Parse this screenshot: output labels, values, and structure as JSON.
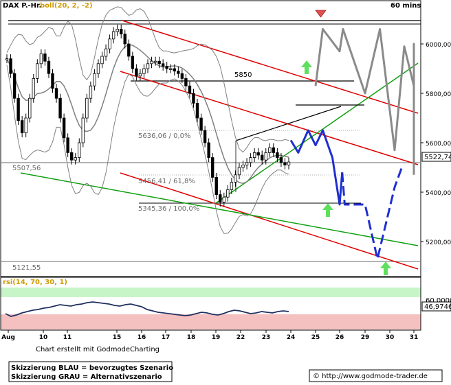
{
  "header": {
    "symbol": "DAX P.-Hr.",
    "indicator": "boll(20, 2, -2)",
    "timeframe": "60 mins"
  },
  "rsi_panel": {
    "label": "rsi(14, 70, 30, 1)",
    "level_label": "60,0000",
    "value_label": "46,9746"
  },
  "footer": {
    "credit": "Chart erstellt mit GodmodeCharting",
    "legend_line1": "Skizzierung BLAU = bevorzugtes Szenario",
    "legend_line2": "Skizzierung GRAU = Alternativszenario",
    "copyright": "© http://www.godmode-trader.de"
  },
  "annotations": {
    "level_5850": "5850",
    "fib_0": "5636,06 / 0,0%",
    "fib_618": "5456,41 / 61,8%",
    "fib_100": "5345,36 / 100,0%",
    "level_5507": "5507,56",
    "level_5121": "5121,55",
    "current_price": "5522,74"
  },
  "colors": {
    "candles": "#000000",
    "bollinger": "#7f7f7f",
    "trend_red": "#e00000",
    "trend_green": "#10a010",
    "scenario_blue": "#1f2fd0",
    "scenario_gray": "#8a8a8a",
    "arrow_green": "#5ee05e",
    "arrow_red": "#e05050",
    "rsi_line": "#1f2f5f",
    "rsi_upper_zone": "#c8f5c8",
    "rsi_lower_zone": "#f5c0c0"
  },
  "chart_data": {
    "type": "line",
    "x_tick_labels": [
      "Aug",
      "10",
      "11",
      "15",
      "16",
      "17",
      "18",
      "19",
      "22",
      "23",
      "24",
      "25",
      "26",
      "29",
      "30",
      "31"
    ],
    "y_tick_labels": [
      "6000,00",
      "5800,00",
      "5600,00",
      "5400,00",
      "5200,00"
    ],
    "ylim": [
      5080,
      6120
    ],
    "price_close_series": [
      5940,
      5880,
      5780,
      5690,
      5640,
      5700,
      5780,
      5860,
      5920,
      5960,
      5930,
      5880,
      5820,
      5780,
      5700,
      5620,
      5560,
      5530,
      5540,
      5600,
      5700,
      5780,
      5830,
      5880,
      5920,
      5950,
      5980,
      6020,
      6050,
      6060,
      6040,
      6000,
      5950,
      5900,
      5870,
      5880,
      5900,
      5920,
      5930,
      5930,
      5920,
      5910,
      5900,
      5900,
      5890,
      5880,
      5860,
      5830,
      5800,
      5760,
      5700,
      5650,
      5600,
      5540,
      5460,
      5390,
      5360,
      5380,
      5410,
      5440,
      5470,
      5500,
      5510,
      5520,
      5540,
      5560,
      5550,
      5530,
      5560,
      5580,
      5560,
      5540,
      5520,
      5510,
      5522
    ],
    "blue_scenario": [
      [
        24.0,
        5610
      ],
      [
        24.3,
        5560
      ],
      [
        24.7,
        5650
      ],
      [
        25.0,
        5590
      ],
      [
        25.3,
        5650
      ],
      [
        25.7,
        5540
      ],
      [
        26.0,
        5350
      ],
      [
        26.3,
        5480
      ],
      [
        26.6,
        5350
      ],
      [
        29.0,
        5350
      ],
      [
        29.5,
        5130
      ],
      [
        30.2,
        5420
      ],
      [
        30.5,
        5500
      ]
    ],
    "gray_scenario": [
      [
        25.0,
        5830
      ],
      [
        25.3,
        6060
      ],
      [
        26.0,
        5970
      ],
      [
        26.4,
        6060
      ],
      [
        29.0,
        5800
      ],
      [
        29.6,
        6060
      ],
      [
        30.2,
        5570
      ],
      [
        30.6,
        5990
      ],
      [
        31.0,
        5830
      ],
      [
        31.4,
        6000
      ],
      [
        31.6,
        5470
      ]
    ],
    "rsi": [
      44,
      40,
      42,
      45,
      47,
      49,
      50,
      52,
      53,
      55,
      57,
      56,
      55,
      57,
      58,
      60,
      61,
      60,
      59,
      58,
      56,
      55,
      57,
      58,
      56,
      54,
      50,
      48,
      46,
      45,
      44,
      43,
      42,
      41,
      42,
      44,
      46,
      45,
      43,
      42,
      44,
      47,
      49,
      48,
      46,
      44,
      45,
      47,
      46,
      45,
      47,
      48,
      47
    ]
  }
}
